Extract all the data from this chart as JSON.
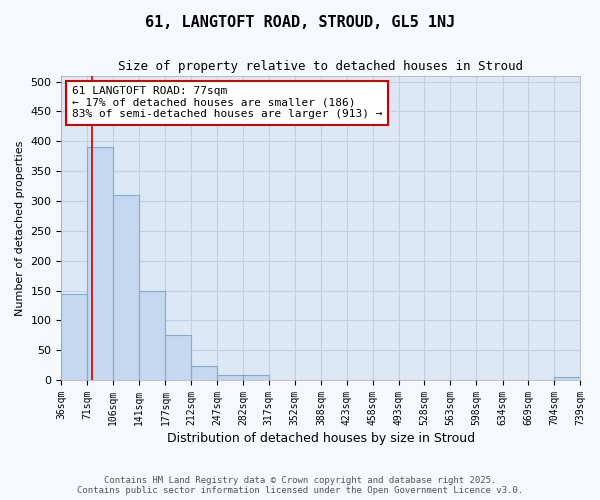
{
  "title": "61, LANGTOFT ROAD, STROUD, GL5 1NJ",
  "subtitle": "Size of property relative to detached houses in Stroud",
  "xlabel": "Distribution of detached houses by size in Stroud",
  "ylabel": "Number of detached properties",
  "property_size": 77,
  "property_label": "61 LANGTOFT ROAD: 77sqm",
  "annotation_line1": "← 17% of detached houses are smaller (186)",
  "annotation_line2": "83% of semi-detached houses are larger (913) →",
  "bar_edges": [
    36,
    71,
    106,
    141,
    177,
    212,
    247,
    282,
    317,
    352,
    388,
    423,
    458,
    493,
    528,
    563,
    598,
    634,
    669,
    704,
    739
  ],
  "bar_heights": [
    145,
    390,
    310,
    150,
    75,
    23,
    8,
    9,
    0,
    0,
    0,
    0,
    0,
    0,
    0,
    0,
    0,
    0,
    0,
    5
  ],
  "bar_color": "#c5d8ef",
  "bar_edge_color": "#7aaed4",
  "grid_color": "#c0d0e0",
  "background_color": "#dce8f5",
  "fig_background_color": "#f5f8fc",
  "red_line_color": "#cc0000",
  "annotation_box_color": "#cc0000",
  "ylim": [
    0,
    510
  ],
  "yticks": [
    0,
    50,
    100,
    150,
    200,
    250,
    300,
    350,
    400,
    450,
    500
  ],
  "footer_line1": "Contains HM Land Registry data © Crown copyright and database right 2025.",
  "footer_line2": "Contains public sector information licensed under the Open Government Licence v3.0."
}
